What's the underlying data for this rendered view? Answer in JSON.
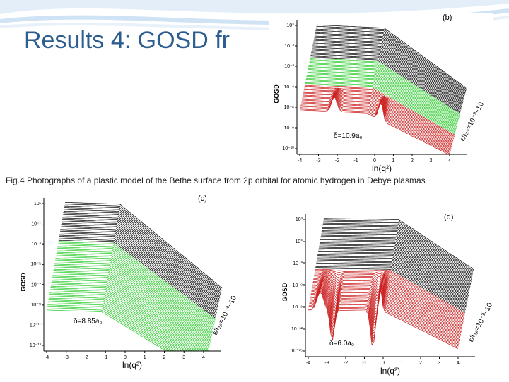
{
  "slide": {
    "title": "Results 4: GOSD fr",
    "caption": "Fig.4 Photographs of a plastic model of the Bethe surface from 2p orbital for atomic hydrogen in Debye plasmas"
  },
  "colors": {
    "title": "#2c5d8f",
    "black": "#111111",
    "green": "#33cc33",
    "red": "#cc2222",
    "swoosh": "#cfe3f5"
  },
  "panels": {
    "b": {
      "label": "(b)",
      "ylabel": "GOSD",
      "xlabel": "ln(q²)",
      "delta": "δ=10.9a₀",
      "epsilon": "ε/I₂ₚ=10⁻³~10",
      "yticks": [
        "10°",
        "10⁻²",
        "10⁻³",
        "10⁻⁴",
        "10⁻⁶",
        "10⁻⁸",
        "10⁻¹⁰"
      ],
      "xticks": [
        "-4",
        "-3",
        "-2",
        "-1",
        "0",
        "1",
        "2",
        "3",
        "4"
      ]
    },
    "c": {
      "label": "(c)",
      "ylabel": "GOSD",
      "xlabel": "ln(q²)",
      "delta": "δ=8.85a₀",
      "epsilon": "ε/I₂ₚ=10⁻³~10",
      "yticks": [
        "10¹",
        "10⁻¹",
        "10⁻³",
        "10⁻⁵",
        "10⁻⁷",
        "10⁻⁹",
        "10⁻¹¹",
        "10⁻¹³"
      ],
      "xticks": [
        "-4",
        "-3",
        "-2",
        "-1",
        "0",
        "1",
        "2",
        "3",
        "4"
      ]
    },
    "d": {
      "label": "(d)",
      "ylabel": "GOSD",
      "xlabel": "ln(q²)",
      "delta": "δ=6.0a₀",
      "epsilon": "ε/I₂ₚ=10⁻³~10",
      "yticks": [
        "10³",
        "10°",
        "10⁻³",
        "10⁻⁶",
        "10⁻⁹",
        "10⁻¹²",
        "10⁻¹⁵"
      ],
      "xticks": [
        "-4",
        "-3",
        "-2",
        "-1",
        "0",
        "1",
        "2",
        "3",
        "4"
      ]
    }
  }
}
